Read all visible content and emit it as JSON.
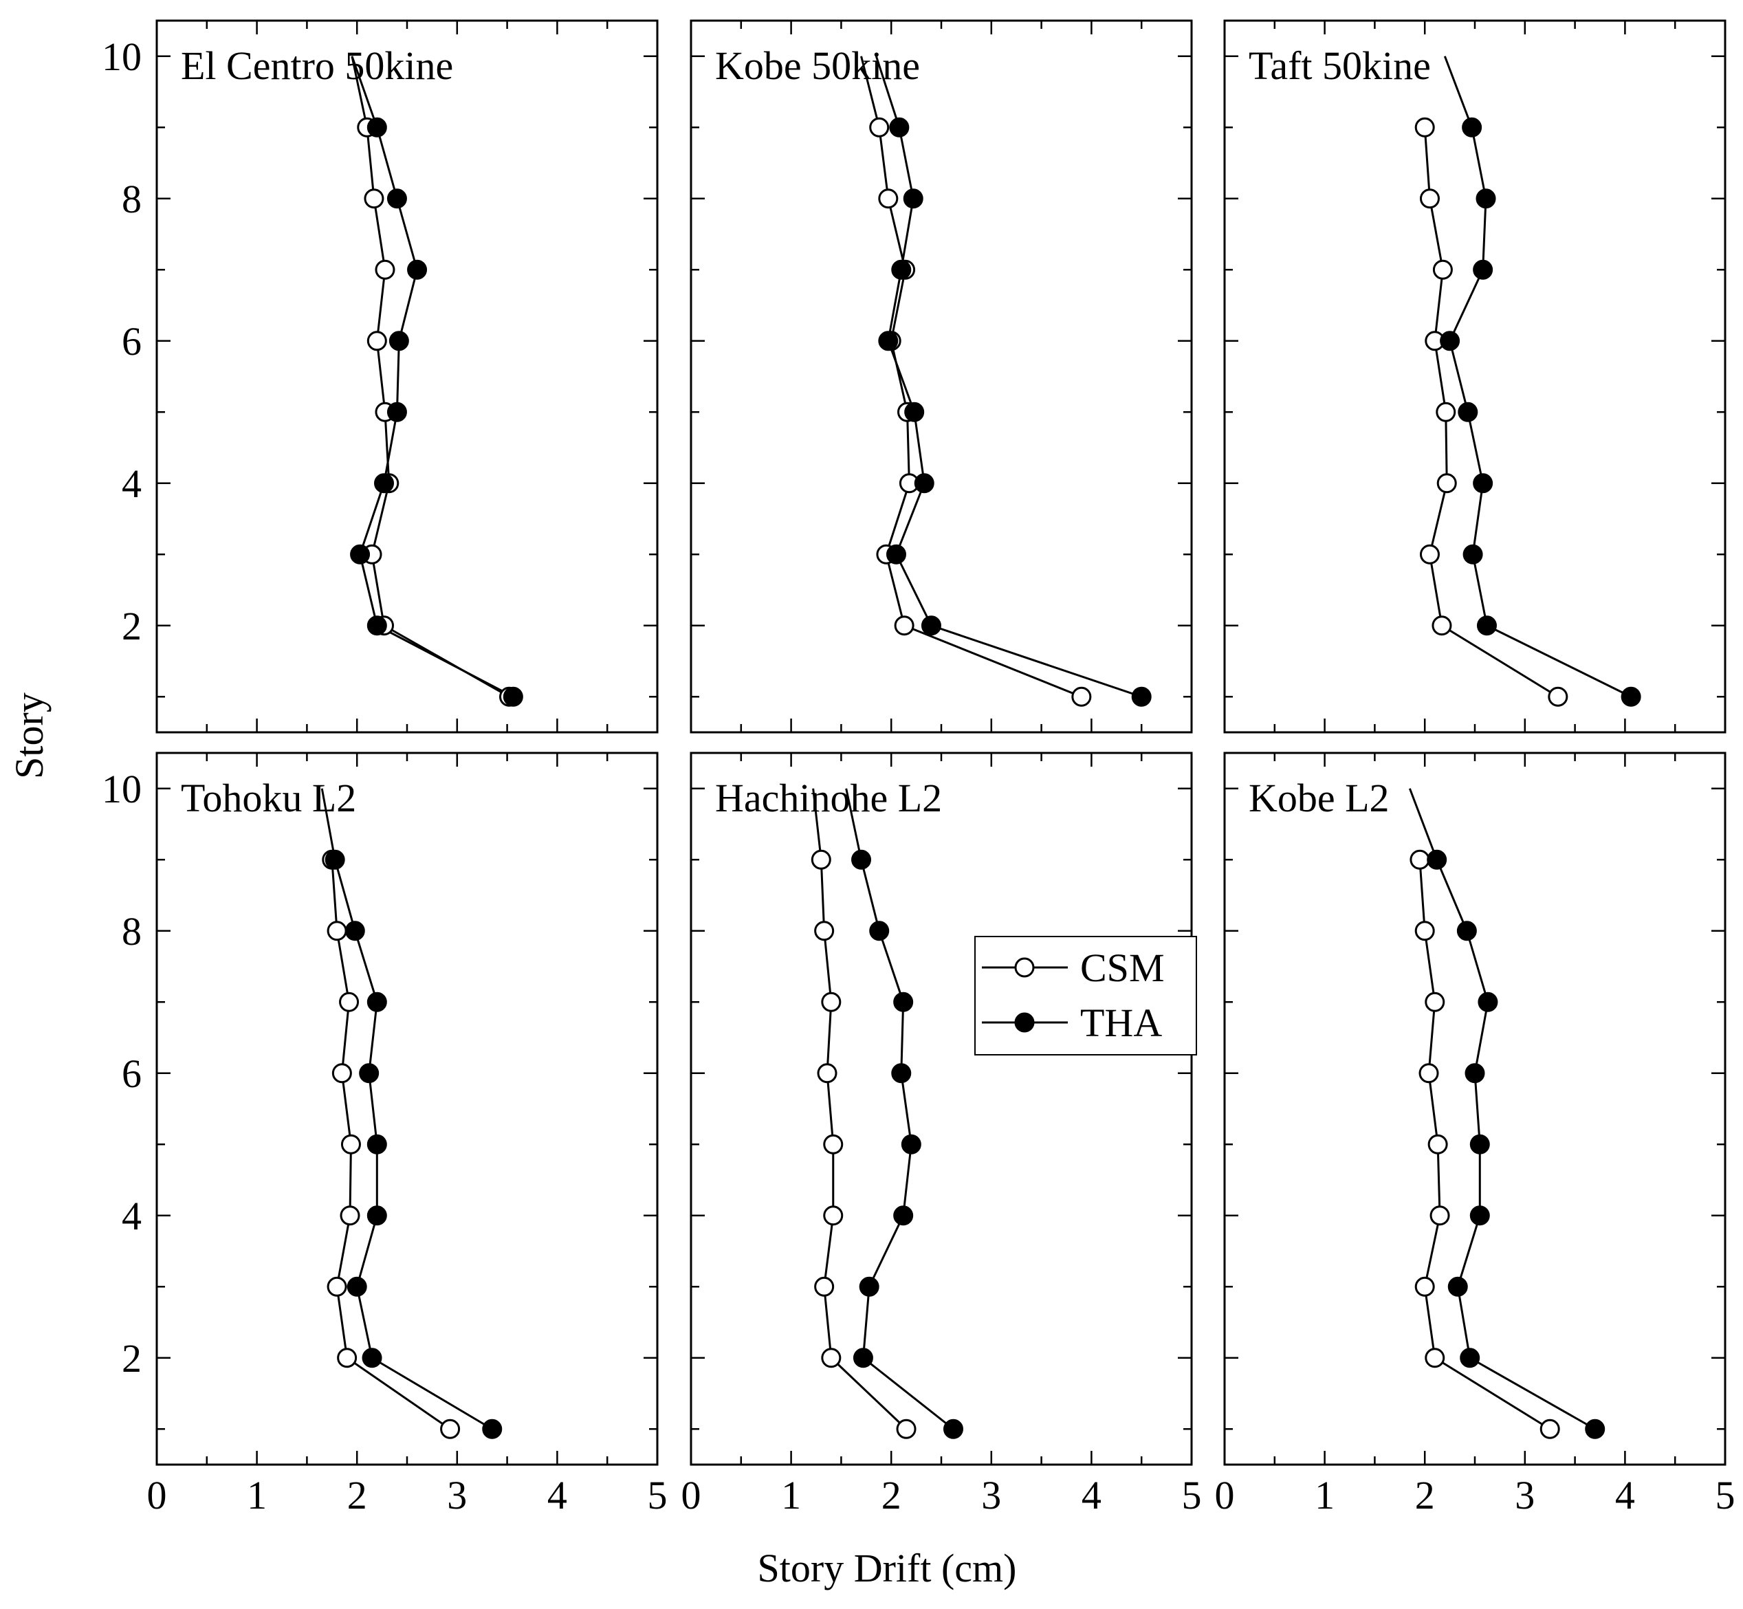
{
  "chart_data": {
    "type": "line",
    "layout": "2x3 panel grid",
    "xlabel": "Story Drift (cm)",
    "ylabel": "Story",
    "xlim": [
      0,
      5
    ],
    "ylim": [
      0.5,
      10.5
    ],
    "xticks": [
      0,
      1,
      2,
      3,
      4,
      5
    ],
    "xtick_labels": [
      "0",
      "1",
      "2",
      "3",
      "4",
      "5"
    ],
    "yticks": [
      2,
      4,
      6,
      8,
      10
    ],
    "ytick_labels": [
      "2",
      "4",
      "6",
      "8",
      "10"
    ],
    "legend": {
      "placement": "center (inside Hachinohe L2 panel)",
      "entries": [
        {
          "name": "CSM",
          "marker": "open-circle",
          "color": "#ffffff"
        },
        {
          "name": "THA",
          "marker": "filled-circle",
          "color": "#000000"
        }
      ]
    },
    "panels": [
      {
        "title": "El Centro 50kine",
        "series": [
          {
            "name": "CSM",
            "stories": [
              1,
              2,
              3,
              4,
              5,
              6,
              7,
              8,
              9,
              10
            ],
            "values": [
              3.52,
              2.27,
              2.15,
              2.32,
              2.28,
              2.2,
              2.28,
              2.17,
              2.1,
              1.95
            ]
          },
          {
            "name": "THA",
            "stories": [
              1,
              2,
              3,
              4,
              5,
              6,
              7,
              8,
              9,
              10
            ],
            "values": [
              3.56,
              2.2,
              2.03,
              2.27,
              2.4,
              2.42,
              2.6,
              2.4,
              2.2,
              1.95
            ]
          }
        ]
      },
      {
        "title": "Kobe 50kine",
        "series": [
          {
            "name": "CSM",
            "stories": [
              1,
              2,
              3,
              4,
              5,
              6,
              7,
              8,
              9,
              10
            ],
            "values": [
              3.9,
              2.13,
              1.95,
              2.18,
              2.16,
              2.0,
              2.14,
              1.97,
              1.88,
              1.7
            ]
          },
          {
            "name": "THA",
            "stories": [
              1,
              2,
              3,
              4,
              5,
              6,
              7,
              8,
              9,
              10
            ],
            "values": [
              4.5,
              2.4,
              2.05,
              2.33,
              2.23,
              1.97,
              2.1,
              2.22,
              2.08,
              1.85
            ]
          }
        ]
      },
      {
        "title": "Taft 50kine",
        "series": [
          {
            "name": "CSM",
            "stories": [
              1,
              2,
              3,
              4,
              5,
              6,
              7,
              8,
              9
            ],
            "values": [
              3.33,
              2.17,
              2.05,
              2.22,
              2.21,
              2.1,
              2.18,
              2.05,
              2.0
            ]
          },
          {
            "name": "THA",
            "stories": [
              1,
              2,
              3,
              4,
              5,
              6,
              7,
              8,
              9,
              10
            ],
            "values": [
              4.06,
              2.62,
              2.48,
              2.58,
              2.43,
              2.25,
              2.58,
              2.61,
              2.47,
              2.2
            ]
          }
        ]
      },
      {
        "title": "Tohoku L2",
        "series": [
          {
            "name": "CSM",
            "stories": [
              1,
              2,
              3,
              4,
              5,
              6,
              7,
              8,
              9
            ],
            "values": [
              2.93,
              1.9,
              1.8,
              1.93,
              1.94,
              1.85,
              1.92,
              1.8,
              1.75
            ]
          },
          {
            "name": "THA",
            "stories": [
              1,
              2,
              3,
              4,
              5,
              6,
              7,
              8,
              9,
              10
            ],
            "values": [
              3.35,
              2.15,
              2.0,
              2.2,
              2.2,
              2.12,
              2.2,
              1.98,
              1.78,
              1.65
            ]
          }
        ]
      },
      {
        "title": "Hachinohe L2",
        "series": [
          {
            "name": "CSM",
            "stories": [
              1,
              2,
              3,
              4,
              5,
              6,
              7,
              8,
              9,
              10
            ],
            "values": [
              2.15,
              1.4,
              1.33,
              1.42,
              1.42,
              1.36,
              1.4,
              1.33,
              1.3,
              1.22
            ]
          },
          {
            "name": "THA",
            "stories": [
              1,
              2,
              3,
              4,
              5,
              6,
              7,
              8,
              9,
              10
            ],
            "values": [
              2.62,
              1.72,
              1.78,
              2.12,
              2.2,
              2.1,
              2.12,
              1.88,
              1.7,
              1.55
            ]
          }
        ]
      },
      {
        "title": "Kobe L2",
        "series": [
          {
            "name": "CSM",
            "stories": [
              1,
              2,
              3,
              4,
              5,
              6,
              7,
              8,
              9
            ],
            "values": [
              3.25,
              2.1,
              2.0,
              2.15,
              2.13,
              2.04,
              2.1,
              2.0,
              1.95
            ]
          },
          {
            "name": "THA",
            "stories": [
              1,
              2,
              3,
              4,
              5,
              6,
              7,
              8,
              9,
              10
            ],
            "values": [
              3.7,
              2.45,
              2.33,
              2.55,
              2.55,
              2.5,
              2.63,
              2.42,
              2.12,
              1.85
            ]
          }
        ]
      }
    ]
  }
}
